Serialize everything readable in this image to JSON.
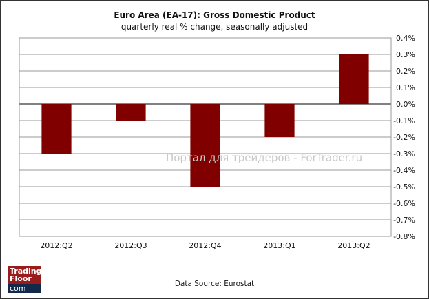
{
  "chart_data": {
    "type": "bar",
    "title": "Euro Area (EA-17): Gross Domestic Product",
    "subtitle": "quarterly real % change, seasonally adjusted",
    "categories": [
      "2012:Q2",
      "2012:Q3",
      "2012:Q4",
      "2013:Q1",
      "2013:Q2"
    ],
    "values": [
      -0.3,
      -0.1,
      -0.5,
      -0.2,
      0.3
    ],
    "ylim": [
      -0.8,
      0.4
    ],
    "yticks": [
      "0.4%",
      "0.3%",
      "0.2%",
      "0.1%",
      "0.0%",
      "-0.1%",
      "-0.2%",
      "-0.3%",
      "-0.4%",
      "-0.5%",
      "-0.6%",
      "-0.7%",
      "-0.8%"
    ],
    "y_axis_side": "right",
    "grid": true,
    "bar_color": "#800000",
    "source": "Data Source: Eurostat"
  },
  "watermark": "Портал для трейдеров - ForTrader.ru",
  "logo": {
    "line1": "Trading",
    "line2": "Floor",
    "line3": "com"
  }
}
